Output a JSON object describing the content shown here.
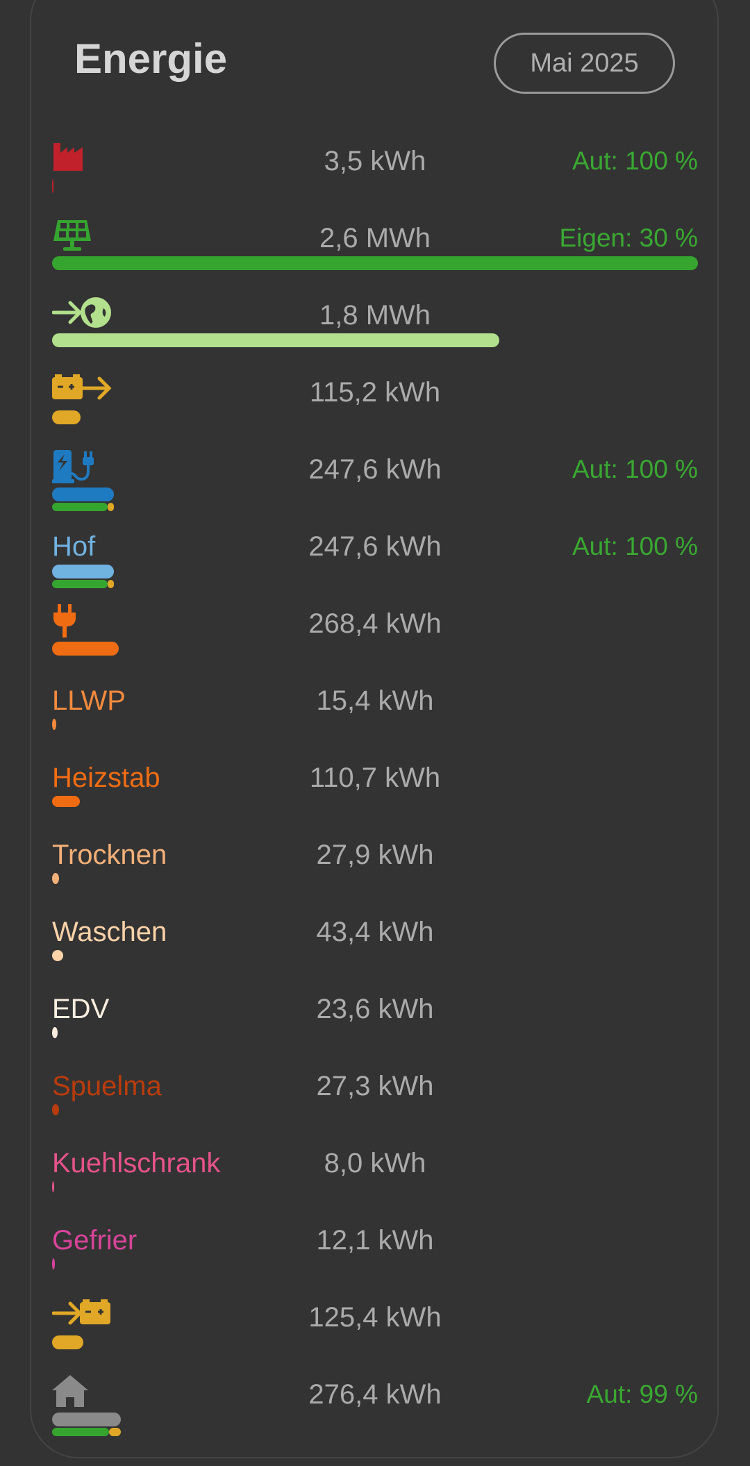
{
  "header": {
    "title": "Energie",
    "period_button": "Mai 2025"
  },
  "max_kwh": 2600,
  "colors": {
    "text": "#ababab",
    "accent_green": "#3aa832",
    "self_bar": "#35a52f",
    "battery_bar": "#e0a826"
  },
  "rows": [
    {
      "icon": "factory-icon",
      "value": "3,5 kWh",
      "kwh": 3.5,
      "extra": "Aut: 100 %",
      "color": "#c0212a"
    },
    {
      "icon": "solar-panel-icon",
      "value": "2,6 MWh",
      "kwh": 2600,
      "extra": "Eigen: 30 %",
      "color": "#35a52f"
    },
    {
      "icon": "grid-export-icon",
      "value": "1,8 MWh",
      "kwh": 1800,
      "color": "#b2e08c"
    },
    {
      "icon": "battery-discharge-icon",
      "value": "115,2 kWh",
      "kwh": 115.2,
      "color": "#e0a826"
    },
    {
      "icon": "ev-charger-icon",
      "value": "247,6 kWh",
      "kwh": 247.6,
      "extra": "Aut: 100 %",
      "color": "#1f7bc1",
      "self_fraction": 0.9
    },
    {
      "label": "Hof",
      "value": "247,6 kWh",
      "kwh": 247.6,
      "extra": "Aut: 100 %",
      "color": "#70b2e0",
      "self_fraction": 0.9
    },
    {
      "icon": "plug-icon",
      "value": "268,4 kWh",
      "kwh": 268.4,
      "color": "#f06c13"
    },
    {
      "label": "LLWP",
      "value": "15,4 kWh",
      "kwh": 15.4,
      "color": "#f38a3e"
    },
    {
      "label": "Heizstab",
      "value": "110,7 kWh",
      "kwh": 110.7,
      "color": "#f06c13"
    },
    {
      "label": "Trocknen",
      "value": "27,9 kWh",
      "kwh": 27.9,
      "color": "#f4b079"
    },
    {
      "label": "Waschen",
      "value": "43,4 kWh",
      "kwh": 43.4,
      "color": "#fdd3a9"
    },
    {
      "label": "EDV",
      "value": "23,6 kWh",
      "kwh": 23.6,
      "color": "#fbeee0"
    },
    {
      "label": "Spuelma",
      "value": "27,3 kWh",
      "kwh": 27.3,
      "color": "#b83c0c"
    },
    {
      "label": "Kuehlschrank",
      "value": "8,0 kWh",
      "kwh": 8.0,
      "color": "#e6538a"
    },
    {
      "label": "Gefrier",
      "value": "12,1 kWh",
      "kwh": 12.1,
      "color": "#d84499"
    },
    {
      "icon": "battery-charge-icon",
      "value": "125,4 kWh",
      "kwh": 125.4,
      "color": "#e0a826"
    },
    {
      "icon": "home-icon",
      "value": "276,4 kWh",
      "kwh": 276.4,
      "extra": "Aut: 99 %",
      "color": "#8a8a8a",
      "self_fraction": 0.83
    }
  ]
}
